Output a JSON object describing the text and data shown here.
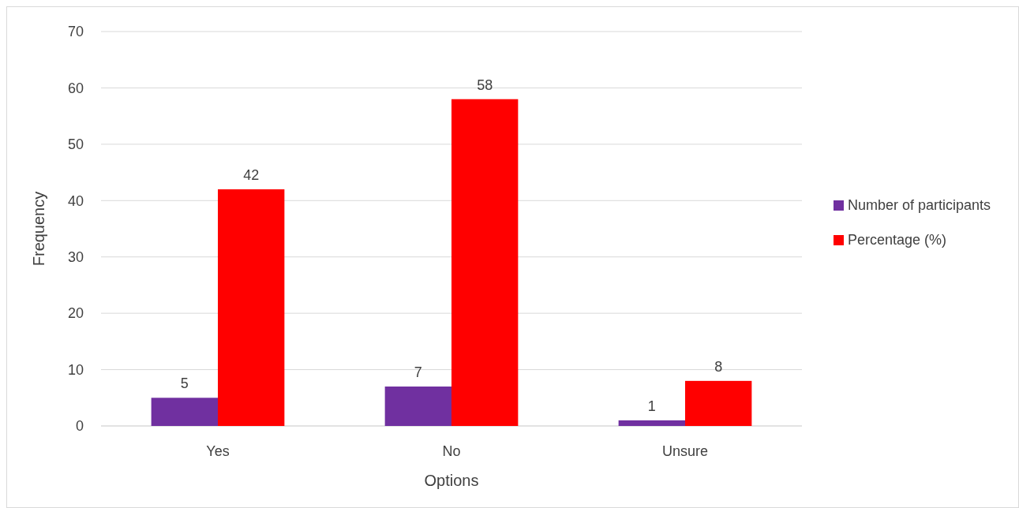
{
  "chart_data": {
    "type": "bar",
    "xlabel": "Options",
    "ylabel": "Frequency",
    "categories": [
      "Yes",
      "No",
      "Unsure"
    ],
    "series": [
      {
        "name": "Number of participants",
        "color": "#7030a0",
        "values": [
          5,
          7,
          1
        ]
      },
      {
        "name": "Percentage (%)",
        "color": "#ff0000",
        "values": [
          42,
          58,
          8
        ]
      }
    ],
    "ylim": [
      0,
      70
    ],
    "yticks": [
      0,
      10,
      20,
      30,
      40,
      50,
      60,
      70
    ],
    "grid": "y",
    "legend": "right",
    "data_labels": true
  }
}
